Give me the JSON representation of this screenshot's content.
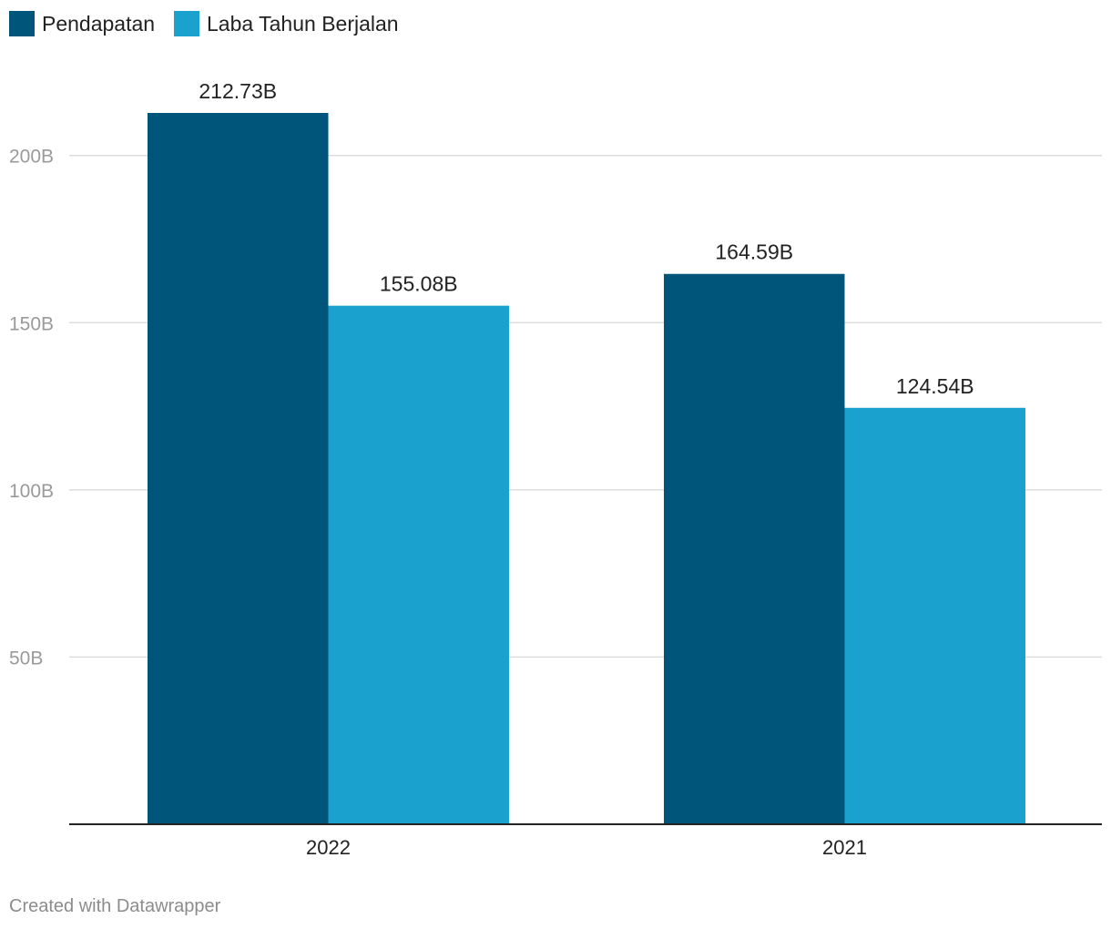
{
  "chart_data": {
    "type": "bar",
    "categories": [
      "2022",
      "2021"
    ],
    "series": [
      {
        "name": "Pendapatan",
        "color": "#00557a",
        "values": [
          212.73,
          164.59
        ],
        "labels": [
          "212.73B",
          "164.59B"
        ]
      },
      {
        "name": "Laba Tahun Berjalan",
        "color": "#1aa1ce",
        "values": [
          155.08,
          124.54
        ],
        "labels": [
          "155.08B",
          "124.54B"
        ]
      }
    ],
    "ylim": [
      0,
      212.73
    ],
    "yticks": [
      {
        "value": 50,
        "label": "50B"
      },
      {
        "value": 100,
        "label": "100B"
      },
      {
        "value": 150,
        "label": "150B"
      },
      {
        "value": 200,
        "label": "200B"
      }
    ],
    "legend_position": "top-left",
    "grid": true
  },
  "footer": {
    "credit": "Created with Datawrapper"
  }
}
